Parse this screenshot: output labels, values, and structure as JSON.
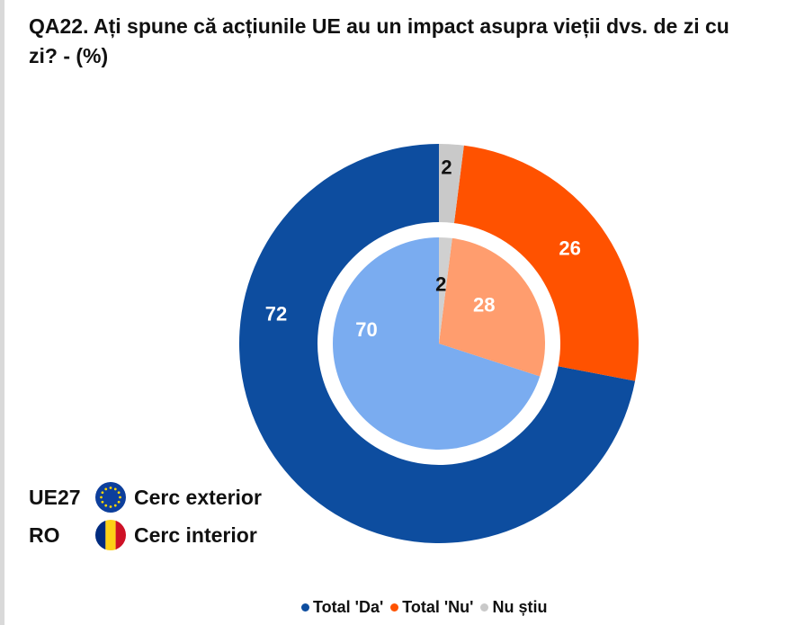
{
  "header": {
    "title": "QA22. Ați spune că acțiunile UE au un impact asupra vieții dvs. de zi cu zi? - (%)"
  },
  "colors": {
    "outer_da": "#0d4d9f",
    "outer_nu": "#ff5200",
    "outer_ns": "#c9c9c9",
    "inner_da": "#7aacf0",
    "inner_nu": "#ff9d6e",
    "inner_ns": "#d0d0d0",
    "flag_eu_blue": "#0d3f9c",
    "flag_eu_stars": "#ffd700",
    "flag_ro_blue": "#002b7f",
    "flag_ro_yellow": "#fcd116",
    "flag_ro_red": "#ce1126"
  },
  "ring_key": [
    {
      "code": "UE27",
      "flag": "eu-flag-icon",
      "label": "Cerc exterior"
    },
    {
      "code": "RO",
      "flag": "romania-flag-icon",
      "label": "Cerc interior"
    }
  ],
  "chart_data": {
    "type": "pie",
    "title": "QA22. Ați spune că acțiunile UE au un impact asupra vieții dvs. de zi cu zi? - (%)",
    "categories": [
      "Total 'Da'",
      "Total 'Nu'",
      "Nu știu"
    ],
    "series": [
      {
        "name": "UE27",
        "ring": "Cerc exterior",
        "values": [
          72,
          26,
          2
        ]
      },
      {
        "name": "RO",
        "ring": "Cerc interior",
        "values": [
          70,
          28,
          2
        ]
      }
    ],
    "legend_position": "bottom"
  },
  "legend": [
    {
      "label": "Total 'Da'"
    },
    {
      "label": "Total 'Nu'"
    },
    {
      "label": "Nu știu"
    }
  ]
}
